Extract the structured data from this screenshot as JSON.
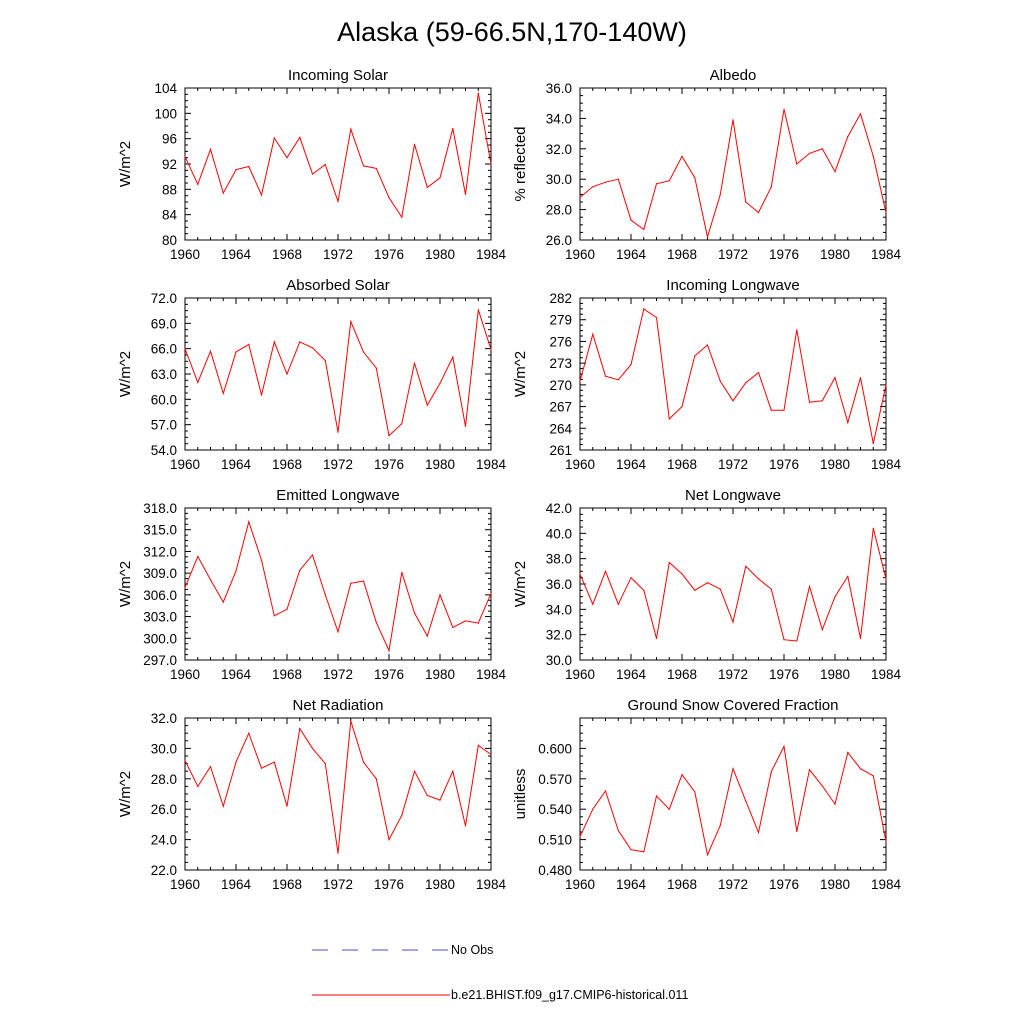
{
  "figure": {
    "title": "Alaska (59-66.5N,170-140W)",
    "legend": [
      {
        "label": "No Obs",
        "color": "#4a4acc",
        "style": "dashed"
      },
      {
        "label": "b.e21.BHIST.f09_g17.CMIP6-historical.011",
        "color": "#ff0000",
        "style": "solid"
      }
    ]
  },
  "chart_data": [
    {
      "type": "line",
      "title": "Incoming Solar",
      "ylabel": "W/m^2",
      "xlim": [
        1960,
        1984
      ],
      "ylim": [
        80,
        104
      ],
      "xticks": [
        1960,
        1964,
        1968,
        1972,
        1976,
        1980,
        1984
      ],
      "yticks": [
        80,
        84,
        88,
        92,
        96,
        100,
        104
      ],
      "ytick_labels": [
        "80",
        "84",
        "88",
        "92",
        "96",
        "100",
        "104"
      ],
      "x": [
        1960,
        1961,
        1962,
        1963,
        1964,
        1965,
        1966,
        1967,
        1968,
        1969,
        1970,
        1971,
        1972,
        1973,
        1974,
        1975,
        1976,
        1977,
        1978,
        1979,
        1980,
        1981,
        1982,
        1983,
        1984
      ],
      "series": [
        {
          "name": "b.e21.BHIST.f09_g17.CMIP6-historical.011",
          "color": "#ff0000",
          "values": [
            93.2,
            88.8,
            94.3,
            87.4,
            91.1,
            91.6,
            87.1,
            96.1,
            93.0,
            96.2,
            90.4,
            91.9,
            86.1,
            97.5,
            91.7,
            91.3,
            86.7,
            83.6,
            95.1,
            88.3,
            89.8,
            97.6,
            87.2,
            103.2,
            92.0
          ]
        }
      ]
    },
    {
      "type": "line",
      "title": "Albedo",
      "ylabel": "% reflected",
      "xlim": [
        1960,
        1984
      ],
      "ylim": [
        26,
        36
      ],
      "xticks": [
        1960,
        1964,
        1968,
        1972,
        1976,
        1980,
        1984
      ],
      "yticks": [
        26,
        28,
        30,
        32,
        34,
        36
      ],
      "ytick_labels": [
        "26.0",
        "28.0",
        "30.0",
        "32.0",
        "34.0",
        "36.0"
      ],
      "x": [
        1960,
        1961,
        1962,
        1963,
        1964,
        1965,
        1966,
        1967,
        1968,
        1969,
        1970,
        1971,
        1972,
        1973,
        1974,
        1975,
        1976,
        1977,
        1978,
        1979,
        1980,
        1981,
        1982,
        1983,
        1984
      ],
      "series": [
        {
          "name": "b.e21.BHIST.f09_g17.CMIP6-historical.011",
          "color": "#ff0000",
          "values": [
            28.8,
            29.5,
            29.8,
            30.0,
            27.3,
            26.7,
            29.7,
            29.9,
            31.5,
            30.1,
            26.2,
            29.0,
            33.9,
            28.5,
            27.8,
            29.5,
            34.6,
            31.0,
            31.7,
            32.0,
            30.5,
            32.8,
            34.3,
            31.5,
            27.8
          ]
        }
      ]
    },
    {
      "type": "line",
      "title": "Absorbed Solar",
      "ylabel": "W/m^2",
      "xlim": [
        1960,
        1984
      ],
      "ylim": [
        54,
        72
      ],
      "xticks": [
        1960,
        1964,
        1968,
        1972,
        1976,
        1980,
        1984
      ],
      "yticks": [
        54,
        57,
        60,
        63,
        66,
        69,
        72
      ],
      "ytick_labels": [
        "54.0",
        "57.0",
        "60.0",
        "63.0",
        "66.0",
        "69.0",
        "72.0"
      ],
      "x": [
        1960,
        1961,
        1962,
        1963,
        1964,
        1965,
        1966,
        1967,
        1968,
        1969,
        1970,
        1971,
        1972,
        1973,
        1974,
        1975,
        1976,
        1977,
        1978,
        1979,
        1980,
        1981,
        1982,
        1983,
        1984
      ],
      "series": [
        {
          "name": "b.e21.BHIST.f09_g17.CMIP6-historical.011",
          "color": "#ff0000",
          "values": [
            66.0,
            62.0,
            65.7,
            60.7,
            65.6,
            66.5,
            60.5,
            66.8,
            63.0,
            66.8,
            66.1,
            64.6,
            56.1,
            69.2,
            65.6,
            63.7,
            55.7,
            57.1,
            64.3,
            59.3,
            61.9,
            65.0,
            56.8,
            70.6,
            65.9
          ]
        }
      ]
    },
    {
      "type": "line",
      "title": "Incoming Longwave",
      "ylabel": "W/m^2",
      "xlim": [
        1960,
        1984
      ],
      "ylim": [
        261,
        282
      ],
      "xticks": [
        1960,
        1964,
        1968,
        1972,
        1976,
        1980,
        1984
      ],
      "yticks": [
        261,
        264,
        267,
        270,
        273,
        276,
        279,
        282
      ],
      "ytick_labels": [
        "261",
        "264",
        "267",
        "270",
        "273",
        "276",
        "279",
        "282"
      ],
      "x": [
        1960,
        1961,
        1962,
        1963,
        1964,
        1965,
        1966,
        1967,
        1968,
        1969,
        1970,
        1971,
        1972,
        1973,
        1974,
        1975,
        1976,
        1977,
        1978,
        1979,
        1980,
        1981,
        1982,
        1983,
        1984
      ],
      "series": [
        {
          "name": "b.e21.BHIST.f09_g17.CMIP6-historical.011",
          "color": "#ff0000",
          "values": [
            270.5,
            277.0,
            271.2,
            270.7,
            272.8,
            280.5,
            279.3,
            265.3,
            267.0,
            274.0,
            275.5,
            270.5,
            267.8,
            270.3,
            271.7,
            266.5,
            266.5,
            277.6,
            267.6,
            267.8,
            271.0,
            264.8,
            271.0,
            261.9,
            270.0
          ]
        }
      ]
    },
    {
      "type": "line",
      "title": "Emitted Longwave",
      "ylabel": "W/m^2",
      "xlim": [
        1960,
        1984
      ],
      "ylim": [
        297,
        318
      ],
      "xticks": [
        1960,
        1964,
        1968,
        1972,
        1976,
        1980,
        1984
      ],
      "yticks": [
        297,
        300,
        303,
        306,
        309,
        312,
        315,
        318
      ],
      "ytick_labels": [
        "297.0",
        "300.0",
        "303.0",
        "306.0",
        "309.0",
        "312.0",
        "315.0",
        "318.0"
      ],
      "x": [
        1960,
        1961,
        1962,
        1963,
        1964,
        1965,
        1966,
        1967,
        1968,
        1969,
        1970,
        1971,
        1972,
        1973,
        1974,
        1975,
        1976,
        1977,
        1978,
        1979,
        1980,
        1981,
        1982,
        1983,
        1984
      ],
      "series": [
        {
          "name": "b.e21.BHIST.f09_g17.CMIP6-historical.011",
          "color": "#ff0000",
          "values": [
            307.0,
            311.3,
            308.1,
            305.0,
            309.3,
            316.1,
            310.8,
            303.1,
            304.0,
            309.4,
            311.5,
            306.0,
            300.9,
            307.6,
            307.9,
            302.2,
            298.3,
            309.1,
            303.5,
            300.3,
            306.0,
            301.5,
            302.4,
            302.1,
            306.2
          ]
        }
      ]
    },
    {
      "type": "line",
      "title": "Net Longwave",
      "ylabel": "W/m^2",
      "xlim": [
        1960,
        1984
      ],
      "ylim": [
        30,
        42
      ],
      "xticks": [
        1960,
        1964,
        1968,
        1972,
        1976,
        1980,
        1984
      ],
      "yticks": [
        30,
        32,
        34,
        36,
        38,
        40,
        42
      ],
      "ytick_labels": [
        "30.0",
        "32.0",
        "34.0",
        "36.0",
        "38.0",
        "40.0",
        "42.0"
      ],
      "x": [
        1960,
        1961,
        1962,
        1963,
        1964,
        1965,
        1966,
        1967,
        1968,
        1969,
        1970,
        1971,
        1972,
        1973,
        1974,
        1975,
        1976,
        1977,
        1978,
        1979,
        1980,
        1981,
        1982,
        1983,
        1984
      ],
      "series": [
        {
          "name": "b.e21.BHIST.f09_g17.CMIP6-historical.011",
          "color": "#ff0000",
          "values": [
            36.8,
            34.4,
            37.0,
            34.4,
            36.5,
            35.5,
            31.7,
            37.7,
            36.8,
            35.5,
            36.1,
            35.6,
            33.0,
            37.4,
            36.4,
            35.6,
            31.6,
            31.5,
            35.8,
            32.4,
            35.0,
            36.6,
            31.7,
            40.4,
            36.4
          ]
        }
      ]
    },
    {
      "type": "line",
      "title": "Net Radiation",
      "ylabel": "W/m^2",
      "xlim": [
        1960,
        1984
      ],
      "ylim": [
        22,
        32
      ],
      "xticks": [
        1960,
        1964,
        1968,
        1972,
        1976,
        1980,
        1984
      ],
      "yticks": [
        22,
        24,
        26,
        28,
        30,
        32
      ],
      "ytick_labels": [
        "22.0",
        "24.0",
        "26.0",
        "28.0",
        "30.0",
        "32.0"
      ],
      "x": [
        1960,
        1961,
        1962,
        1963,
        1964,
        1965,
        1966,
        1967,
        1968,
        1969,
        1970,
        1971,
        1972,
        1973,
        1974,
        1975,
        1976,
        1977,
        1978,
        1979,
        1980,
        1981,
        1982,
        1983,
        1984
      ],
      "series": [
        {
          "name": "b.e21.BHIST.f09_g17.CMIP6-historical.011",
          "color": "#ff0000",
          "values": [
            29.2,
            27.5,
            28.8,
            26.2,
            29.1,
            31.0,
            28.7,
            29.1,
            26.2,
            31.3,
            30.0,
            29.0,
            23.1,
            31.8,
            29.1,
            28.0,
            24.0,
            25.6,
            28.5,
            26.9,
            26.6,
            28.5,
            24.9,
            30.2,
            29.6
          ]
        }
      ]
    },
    {
      "type": "line",
      "title": "Ground Snow Covered Fraction",
      "ylabel": "unitless",
      "xlim": [
        1960,
        1984
      ],
      "ylim": [
        0.48,
        0.63
      ],
      "xticks": [
        1960,
        1964,
        1968,
        1972,
        1976,
        1980,
        1984
      ],
      "yticks": [
        0.48,
        0.51,
        0.54,
        0.57,
        0.6
      ],
      "ytick_labels": [
        "0.480",
        "0.510",
        "0.540",
        "0.570",
        "0.600"
      ],
      "x": [
        1960,
        1961,
        1962,
        1963,
        1964,
        1965,
        1966,
        1967,
        1968,
        1969,
        1970,
        1971,
        1972,
        1973,
        1974,
        1975,
        1976,
        1977,
        1978,
        1979,
        1980,
        1981,
        1982,
        1983,
        1984
      ],
      "series": [
        {
          "name": "b.e21.BHIST.f09_g17.CMIP6-historical.011",
          "color": "#ff0000",
          "values": [
            0.513,
            0.54,
            0.558,
            0.519,
            0.5,
            0.498,
            0.553,
            0.54,
            0.574,
            0.557,
            0.495,
            0.524,
            0.58,
            0.548,
            0.517,
            0.577,
            0.602,
            0.518,
            0.579,
            0.563,
            0.545,
            0.596,
            0.58,
            0.573,
            0.508
          ]
        }
      ]
    }
  ]
}
